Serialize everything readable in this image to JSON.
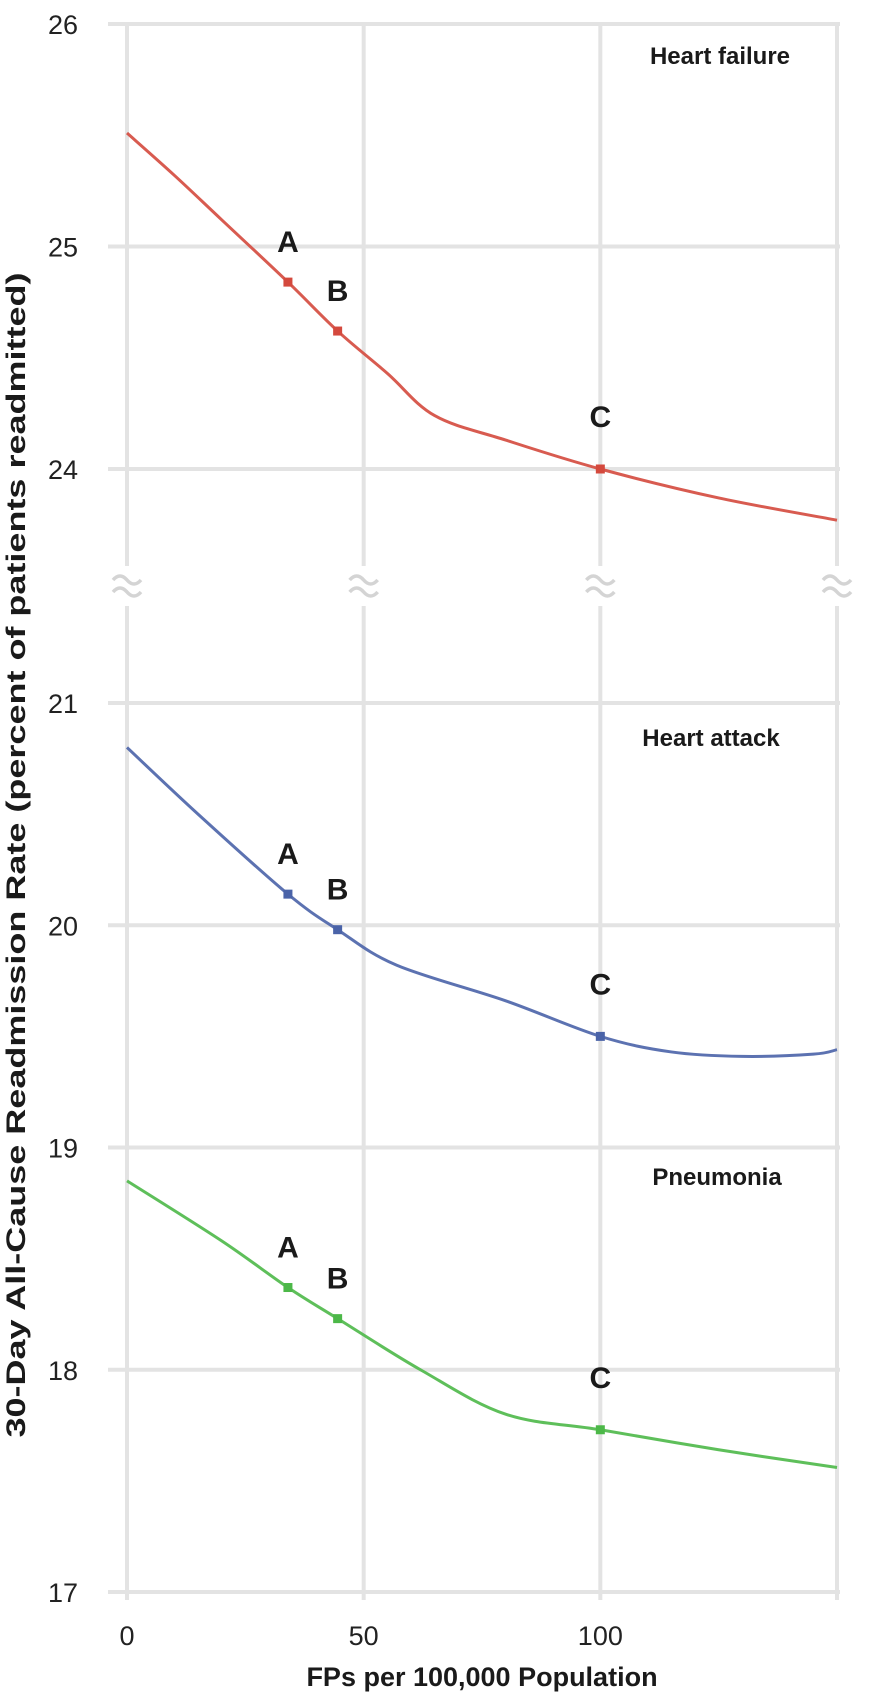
{
  "chart_data": {
    "type": "line",
    "xlabel": "FPs per 100,000 Population",
    "ylabel": "30-Day All-Cause Readmission Rate (percent of patients readmitted)",
    "xlim": [
      0,
      150
    ],
    "x_ticks": [
      "0",
      "50",
      "100"
    ],
    "y_axis_break": true,
    "ylim_upper": [
      24,
      26
    ],
    "ylim_lower": [
      17,
      21
    ],
    "y_ticks": [
      "26",
      "25",
      "24",
      "21",
      "20",
      "19",
      "18",
      "17"
    ],
    "grid": true,
    "series": [
      {
        "name": "Heart failure",
        "color": "#d4493d",
        "points": [
          [
            0,
            25.51
          ],
          [
            10,
            25.32
          ],
          [
            20,
            25.12
          ],
          [
            34,
            24.84
          ],
          [
            44.5,
            24.62
          ],
          [
            55,
            24.43
          ],
          [
            65,
            24.24
          ],
          [
            80,
            24.13
          ],
          [
            100,
            24.0
          ],
          [
            125,
            23.87
          ],
          [
            150,
            23.77
          ]
        ],
        "markers": [
          {
            "label": "A",
            "x": 34,
            "y": 24.84
          },
          {
            "label": "B",
            "x": 44.5,
            "y": 24.62
          },
          {
            "label": "C",
            "x": 100,
            "y": 24.0
          }
        ]
      },
      {
        "name": "Heart attack",
        "color": "#4a63a8",
        "points": [
          [
            0,
            20.8
          ],
          [
            15,
            20.5
          ],
          [
            34,
            20.14
          ],
          [
            44.5,
            19.98
          ],
          [
            57,
            19.82
          ],
          [
            80,
            19.66
          ],
          [
            100,
            19.5
          ],
          [
            115,
            19.43
          ],
          [
            130,
            19.41
          ],
          [
            145,
            19.42
          ],
          [
            150,
            19.44
          ]
        ],
        "markers": [
          {
            "label": "A",
            "x": 34,
            "y": 20.14
          },
          {
            "label": "B",
            "x": 44.5,
            "y": 19.98
          },
          {
            "label": "C",
            "x": 100,
            "y": 19.5
          }
        ]
      },
      {
        "name": "Pneumonia",
        "color": "#4cb848",
        "points": [
          [
            0,
            18.85
          ],
          [
            20,
            18.58
          ],
          [
            34,
            18.37
          ],
          [
            44.5,
            18.23
          ],
          [
            62,
            18.0
          ],
          [
            80,
            17.8
          ],
          [
            100,
            17.73
          ],
          [
            125,
            17.64
          ],
          [
            150,
            17.56
          ]
        ],
        "markers": [
          {
            "label": "A",
            "x": 34,
            "y": 18.37
          },
          {
            "label": "B",
            "x": 44.5,
            "y": 18.23
          },
          {
            "label": "C",
            "x": 100,
            "y": 17.73
          }
        ]
      }
    ]
  }
}
